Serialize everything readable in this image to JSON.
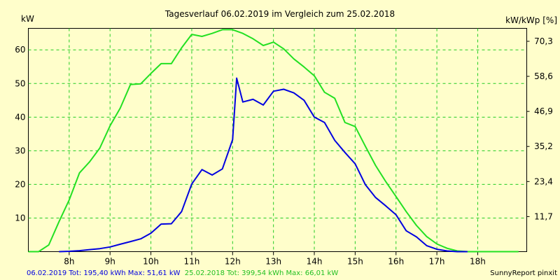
{
  "chart_data": {
    "type": "line",
    "title": "Tagesverlauf 06.02.2019 im Vergleich zum 25.02.2018",
    "ylabel_left": "kW",
    "ylabel_right": "kW/kWp [%]",
    "xlim": [
      7.0,
      19.2
    ],
    "ylim": [
      0,
      66.4
    ],
    "x_ticks": [
      8,
      9,
      10,
      11,
      12,
      13,
      14,
      15,
      16,
      17,
      18
    ],
    "x_tick_labels": [
      "8h",
      "9h",
      "10h",
      "11h",
      "12h",
      "13h",
      "14h",
      "15h",
      "16h",
      "17h",
      "18h"
    ],
    "y_ticks": [
      10,
      20,
      30,
      40,
      50,
      60
    ],
    "y_tick_labels": [
      "10",
      "20",
      "30",
      "40",
      "50",
      "60"
    ],
    "y2_ticks": [
      10.43,
      20.85,
      31.28,
      41.7,
      52.13,
      62.55
    ],
    "y2_tick_labels": [
      "11,7",
      "23,4",
      "35,2",
      "46,9",
      "58,6",
      "70,3"
    ],
    "grid": true,
    "series": [
      {
        "name": "06.02.2019",
        "color": "#0000e0",
        "x": [
          7.75,
          8.0,
          8.25,
          8.5,
          8.75,
          9.0,
          9.25,
          9.5,
          9.75,
          10.0,
          10.25,
          10.5,
          10.75,
          11.0,
          11.25,
          11.5,
          11.75,
          12.0,
          12.1,
          12.25,
          12.5,
          12.75,
          13.0,
          13.25,
          13.5,
          13.75,
          14.0,
          14.25,
          14.5,
          14.75,
          15.0,
          15.25,
          15.5,
          15.75,
          16.0,
          16.25,
          16.5,
          16.75,
          17.0,
          17.25,
          17.5,
          17.75
        ],
        "y": [
          0,
          0.1,
          0.3,
          0.6,
          0.9,
          1.4,
          2.2,
          3.0,
          3.8,
          5.5,
          8.2,
          8.3,
          11.9,
          20.1,
          24.4,
          22.8,
          24.6,
          33.3,
          51.6,
          44.5,
          45.3,
          43.6,
          47.7,
          48.3,
          47.2,
          45.0,
          40.0,
          38.4,
          33.1,
          29.5,
          26.1,
          19.9,
          16.1,
          13.6,
          11.0,
          6.2,
          4.4,
          1.8,
          0.7,
          0.2,
          0.0,
          0.0
        ]
      },
      {
        "name": "25.02.2018",
        "color": "#22e022",
        "x": [
          7.0,
          7.25,
          7.5,
          7.75,
          8.0,
          8.25,
          8.5,
          8.75,
          9.0,
          9.25,
          9.5,
          9.75,
          10.0,
          10.25,
          10.5,
          10.75,
          11.0,
          11.25,
          11.5,
          11.75,
          12.0,
          12.25,
          12.5,
          12.75,
          13.0,
          13.25,
          13.5,
          13.75,
          14.0,
          14.25,
          14.5,
          14.75,
          15.0,
          15.25,
          15.5,
          15.75,
          16.0,
          16.25,
          16.5,
          16.75,
          17.0,
          17.25,
          17.5,
          17.75,
          18.0,
          18.25,
          18.5,
          18.75,
          19.0
        ],
        "y": [
          0,
          0,
          2.0,
          8.9,
          15.4,
          23.4,
          26.7,
          30.8,
          37.4,
          42.7,
          49.7,
          49.9,
          53.0,
          55.9,
          55.9,
          60.6,
          64.6,
          64.0,
          64.9,
          66.0,
          66.0,
          64.9,
          63.3,
          61.3,
          62.3,
          60.3,
          57.3,
          54.9,
          52.3,
          47.4,
          45.6,
          38.4,
          37.2,
          31.3,
          25.6,
          20.8,
          16.4,
          11.9,
          7.8,
          4.5,
          2.3,
          1.0,
          0.2,
          0,
          0,
          0,
          0,
          0,
          0
        ]
      }
    ]
  },
  "footer": {
    "blue_text": "06.02.2019 Tot: 195,40 kWh Max: 51,61 kW",
    "green_text": "25.02.2018 Tot: 399,54 kWh Max: 66,01 kW",
    "brand": "SunnyReport pinxit"
  }
}
